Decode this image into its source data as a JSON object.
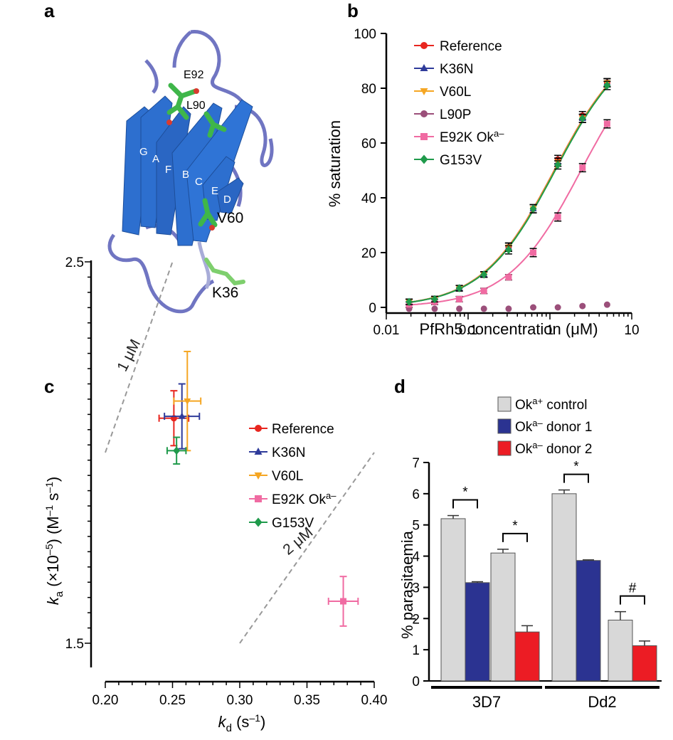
{
  "panels": {
    "a": {
      "letter": "a",
      "residues": [
        "E92",
        "L90",
        "V60",
        "K36"
      ],
      "strands": [
        "G",
        "A",
        "F",
        "B",
        "C",
        "E",
        "D"
      ],
      "colors": {
        "sheet": "#2d6fcf",
        "loop": "#7075c2",
        "sticks": "#3fb64a",
        "oxygen": "#d83b2f"
      }
    },
    "b": {
      "letter": "b",
      "chart_data": {
        "type": "line",
        "xlabel": "PfRh5 concentration (μM)",
        "ylabel": "% saturation",
        "x_scale": "log",
        "xlim": [
          0.01,
          10
        ],
        "ylim": [
          0,
          100
        ],
        "xticks": [
          "0.01",
          "0.1",
          "1",
          "10"
        ],
        "yticks": [
          "0",
          "20",
          "40",
          "60",
          "80",
          "100"
        ],
        "x": [
          0.019,
          0.039,
          0.078,
          0.156,
          0.3125,
          0.625,
          1.25,
          2.5,
          5.0
        ],
        "series": [
          {
            "name": "Reference",
            "color": "#e8261f",
            "marker": "circle",
            "values": [
              2,
              3,
              7,
              12,
              22,
              36,
              54,
              70,
              82
            ],
            "err": [
              1,
              1,
              1,
              1,
              1.5,
              1.5,
              1.5,
              1.5,
              1.5
            ],
            "fit": true
          },
          {
            "name": "K36N",
            "color": "#2f3b9a",
            "marker": "triangle-up",
            "values": [
              2,
              3,
              7,
              12,
              22,
              36,
              53,
              69,
              82
            ],
            "err": [
              1,
              1,
              1,
              1,
              1.5,
              1.5,
              1.5,
              1.5,
              1.5
            ],
            "fit": true
          },
          {
            "name": "V60L",
            "color": "#f5a623",
            "marker": "triangle-down",
            "values": [
              2,
              3,
              7,
              12,
              22,
              36,
              53,
              69,
              82
            ],
            "err": [
              1,
              1,
              1,
              1,
              1.5,
              1.5,
              1.5,
              1.5,
              1.5
            ],
            "fit": true
          },
          {
            "name": "L90P",
            "color": "#9b4f7a",
            "marker": "circle",
            "values": [
              -0.5,
              -0.5,
              -0.5,
              -0.5,
              -0.5,
              0,
              0,
              0.5,
              1
            ],
            "err": [
              0,
              0,
              0,
              0,
              0,
              0,
              0,
              0,
              0
            ],
            "fit": false
          },
          {
            "name": "E92K Ok",
            "name_superscript": "a–",
            "color": "#f06ba2",
            "marker": "square",
            "values": [
              1,
              2,
              3,
              6,
              11,
              20,
              33,
              51,
              67
            ],
            "err": [
              1,
              1,
              1,
              1,
              1,
              1.5,
              1.5,
              1.5,
              1.5
            ],
            "fit": true
          },
          {
            "name": "G153V",
            "color": "#1f9a4b",
            "marker": "diamond",
            "values": [
              2,
              3,
              7,
              12,
              21,
              36,
              52,
              69,
              81
            ],
            "err": [
              1,
              1,
              1,
              1,
              1.5,
              1.5,
              1.5,
              1.5,
              1.5
            ],
            "fit": true
          }
        ],
        "legend_position": "top-left"
      }
    },
    "c": {
      "letter": "c",
      "chart_data": {
        "type": "scatter",
        "xlabel_main": "k",
        "xlabel_sub": "d",
        "xlabel_unit": " (s",
        "xlabel_exp": "–1",
        "xlabel_close": ")",
        "ylabel_main": "k",
        "ylabel_sub": "a",
        "ylabel_rest": " (×10",
        "ylabel_exp1": "–5",
        "ylabel_mid": ") (M",
        "ylabel_exp2": "–1",
        "ylabel_mid2": " s",
        "ylabel_exp3": "–1",
        "ylabel_close": ")",
        "xlim": [
          0.2,
          0.4
        ],
        "ylim": [
          1.5,
          2.5
        ],
        "xticks": [
          "0.20",
          "0.25",
          "0.30",
          "0.35",
          "0.40"
        ],
        "yticks": [
          "1.5",
          "2.5"
        ],
        "points": [
          {
            "name": "Reference",
            "color": "#e8261f",
            "marker": "circle",
            "x": 0.251,
            "y": 2.09,
            "xerr": 0.011,
            "yerr": 0.072
          },
          {
            "name": "K36N",
            "color": "#2f3b9a",
            "marker": "triangle-up",
            "x": 0.257,
            "y": 2.095,
            "xerr": 0.013,
            "yerr": 0.085
          },
          {
            "name": "V60L",
            "color": "#f5a623",
            "marker": "triangle-down",
            "x": 0.261,
            "y": 2.135,
            "xerr": 0.01,
            "yerr": 0.13
          },
          {
            "name": "E92K Ok",
            "name_superscript": "a–",
            "color": "#f06ba2",
            "marker": "square",
            "x": 0.377,
            "y": 1.61,
            "xerr": 0.011,
            "yerr": 0.065
          },
          {
            "name": "G153V",
            "color": "#1f9a4b",
            "marker": "diamond",
            "x": 0.253,
            "y": 2.005,
            "xerr": 0.007,
            "yerr": 0.035
          }
        ],
        "iso_lines": [
          {
            "label": "1 μM",
            "kd_over_ka": 1.0
          },
          {
            "label": "2 μM",
            "kd_over_ka": 2.0
          }
        ]
      }
    },
    "d": {
      "letter": "d",
      "chart_data": {
        "type": "bar",
        "ylabel": "% parasitaemia",
        "ylim": [
          0,
          7
        ],
        "yticks": [
          "0",
          "1",
          "2",
          "3",
          "4",
          "5",
          "6",
          "7"
        ],
        "groups": [
          {
            "label": "3D7",
            "pairs": [
              {
                "control": 5.2,
                "control_err": 0.1,
                "donor": 3.15,
                "donor_err": 0.03,
                "donor_series": 1,
                "sig": "*"
              },
              {
                "control": 4.1,
                "control_err": 0.12,
                "donor": 1.57,
                "donor_err": 0.2,
                "donor_series": 2,
                "sig": "*"
              }
            ]
          },
          {
            "label": "Dd2",
            "pairs": [
              {
                "control": 6.0,
                "control_err": 0.12,
                "donor": 3.86,
                "donor_err": 0.02,
                "donor_series": 1,
                "sig": "*"
              },
              {
                "control": 1.95,
                "control_err": 0.27,
                "donor": 1.13,
                "donor_err": 0.15,
                "donor_series": 2,
                "sig": "#"
              }
            ]
          }
        ],
        "series": [
          {
            "name_pre": "Ok",
            "name_sup": "a+",
            "name_post": " control",
            "color": "#d8d8d8"
          },
          {
            "name_pre": "Ok",
            "name_sup": "a–",
            "name_post": " donor 1",
            "color": "#2b3391"
          },
          {
            "name_pre": "Ok",
            "name_sup": "a–",
            "name_post": " donor 2",
            "color": "#ec1c24"
          }
        ],
        "legend_position": "top"
      }
    }
  }
}
